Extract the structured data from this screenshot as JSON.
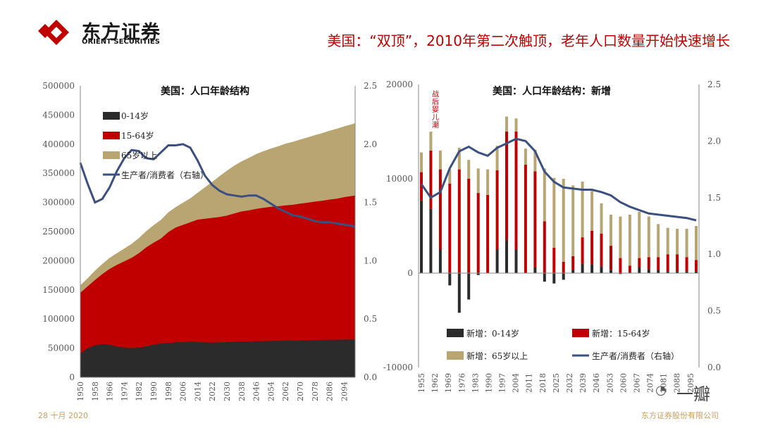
{
  "header": {
    "logo_name": "东方证券",
    "logo_sub": "ORIENT SECURITIES",
    "title": "美国：“双顶”，2010年第二次触顶，老年人口数量开始快速增长"
  },
  "footer": {
    "date": "28 十月 2020",
    "company": "东方证券股份有限公司"
  },
  "watermark": "一瓣",
  "colors": {
    "black": "#2b2b2b",
    "red": "#c00000",
    "tan": "#b8a572",
    "line": "#3b4f80",
    "accent": "#c00000"
  },
  "chart_data": [
    {
      "type": "area",
      "title": "美国：人口年龄结构",
      "x": [
        1950,
        1954,
        1958,
        1962,
        1966,
        1970,
        1974,
        1978,
        1982,
        1986,
        1990,
        1994,
        1998,
        2002,
        2006,
        2010,
        2014,
        2018,
        2022,
        2026,
        2030,
        2034,
        2038,
        2042,
        2046,
        2050,
        2054,
        2058,
        2062,
        2066,
        2070,
        2074,
        2078,
        2082,
        2086,
        2090,
        2094,
        2098,
        2100
      ],
      "x_tick_labels": [
        "1950",
        "1958",
        "1966",
        "1974",
        "1982",
        "1990",
        "1998",
        "2006",
        "2014",
        "2022",
        "2030",
        "2038",
        "2046",
        "2054",
        "2062",
        "2070",
        "2078",
        "2086",
        "2094"
      ],
      "series": [
        {
          "name": "0-14岁",
          "values": [
            41000,
            50000,
            55000,
            57000,
            56000,
            53000,
            51000,
            50000,
            51000,
            53000,
            56000,
            58000,
            59000,
            60000,
            60500,
            61000,
            60500,
            60000,
            59500,
            60000,
            60500,
            61000,
            61500,
            61500,
            62000,
            62000,
            62500,
            62500,
            63000,
            63000,
            63500,
            63500,
            64000,
            64000,
            64500,
            64500,
            65000,
            65000,
            65000
          ]
        },
        {
          "name": "15-64岁",
          "values": [
            104000,
            106000,
            112000,
            120000,
            130000,
            140000,
            148000,
            155000,
            162000,
            170000,
            175000,
            180000,
            190000,
            197000,
            201000,
            205000,
            210000,
            212000,
            214000,
            215000,
            217000,
            220000,
            223000,
            225000,
            227000,
            229000,
            230000,
            231000,
            232000,
            233000,
            234500,
            236000,
            237500,
            239000,
            240500,
            242000,
            244000,
            246000,
            247000
          ]
        },
        {
          "name": "65岁以上",
          "values": [
            13000,
            14000,
            16000,
            17500,
            19000,
            20000,
            22000,
            24000,
            26000,
            28000,
            30000,
            32000,
            34000,
            35000,
            38000,
            41000,
            46000,
            54000,
            62000,
            70000,
            77000,
            82000,
            86000,
            90000,
            94000,
            97000,
            100000,
            103000,
            106000,
            108000,
            110000,
            112000,
            114000,
            116000,
            118000,
            120000,
            121500,
            123000,
            124000
          ]
        },
        {
          "name": "生产者/消费者（右轴）",
          "axis": "right",
          "values": [
            1.84,
            1.66,
            1.5,
            1.53,
            1.63,
            1.77,
            1.88,
            1.95,
            1.94,
            1.88,
            1.87,
            1.93,
            1.99,
            1.99,
            2.0,
            1.97,
            1.86,
            1.73,
            1.65,
            1.6,
            1.57,
            1.56,
            1.55,
            1.56,
            1.56,
            1.53,
            1.49,
            1.45,
            1.42,
            1.39,
            1.38,
            1.36,
            1.34,
            1.33,
            1.33,
            1.32,
            1.31,
            1.3,
            1.29
          ]
        }
      ],
      "y_left": {
        "min": 0,
        "max": 500000,
        "ticks": [
          "0",
          "50000",
          "100000",
          "150000",
          "200000",
          "250000",
          "300000",
          "350000",
          "400000",
          "450000",
          "500000"
        ]
      },
      "y_right": {
        "min": 0,
        "max": 2.5,
        "ticks": [
          "0.0",
          "0.5",
          "1.0",
          "1.5",
          "2.0",
          "2.5"
        ]
      }
    },
    {
      "type": "bar",
      "title": "美国：人口年龄结构：新增",
      "annotation": "战后婴儿潮",
      "x": [
        1955,
        1960,
        1965,
        1970,
        1975,
        1980,
        1985,
        1990,
        1995,
        2000,
        2005,
        2010,
        2015,
        2020,
        2025,
        2030,
        2035,
        2040,
        2045,
        2050,
        2055,
        2060,
        2065,
        2070,
        2075,
        2080,
        2085,
        2090,
        2095,
        2100
      ],
      "x_tick_labels": [
        "1955",
        "1962",
        "1969",
        "1976",
        "1983",
        "1990",
        "1997",
        "2004",
        "2011",
        "2018",
        "2025",
        "2032",
        "2039",
        "2046",
        "2053",
        "2060",
        "2067",
        "2074",
        "2081",
        "2088",
        "2095"
      ],
      "series": [
        {
          "name": "新增：0-14岁",
          "values": [
            7700,
            6800,
            2500,
            -1300,
            -4200,
            -2800,
            -200,
            0,
            2500,
            3500,
            2500,
            0,
            600,
            -900,
            -1100,
            -700,
            300,
            1000,
            900,
            700,
            300,
            -100,
            100,
            600,
            400,
            300,
            200,
            200,
            200,
            200
          ]
        },
        {
          "name": "新增：15-64岁",
          "values": [
            3000,
            6200,
            8500,
            9500,
            11000,
            10000,
            8500,
            8300,
            8400,
            11500,
            12500,
            11500,
            10200,
            5500,
            2700,
            1200,
            1500,
            2800,
            3600,
            3500,
            2600,
            1600,
            700,
            1000,
            1300,
            1400,
            1800,
            1800,
            1500,
            1200
          ]
        },
        {
          "name": "新增：65岁以上",
          "values": [
            2100,
            2000,
            2000,
            1500,
            2300,
            2000,
            2600,
            2700,
            2600,
            1600,
            1400,
            1700,
            2300,
            5600,
            7400,
            8800,
            7500,
            5900,
            4200,
            3200,
            3300,
            4400,
            5400,
            4900,
            4300,
            3500,
            2800,
            2700,
            3000,
            3600
          ]
        },
        {
          "name": "生产者/消费者（右轴）",
          "axis": "right",
          "values": [
            1.62,
            1.5,
            1.55,
            1.76,
            1.91,
            1.95,
            1.9,
            1.87,
            1.94,
            1.98,
            2.02,
            2.0,
            1.91,
            1.73,
            1.64,
            1.59,
            1.58,
            1.57,
            1.57,
            1.55,
            1.52,
            1.46,
            1.42,
            1.39,
            1.36,
            1.35,
            1.34,
            1.33,
            1.32,
            1.3
          ]
        }
      ],
      "y_left": {
        "min": -10000,
        "max": 20000,
        "ticks": [
          "-10000",
          "0",
          "10000",
          "20000"
        ]
      },
      "y_right": {
        "min": 0,
        "max": 2.5,
        "ticks": [
          "0.0",
          "0.5",
          "1.0",
          "1.5",
          "2.0",
          "2.5"
        ]
      }
    }
  ]
}
